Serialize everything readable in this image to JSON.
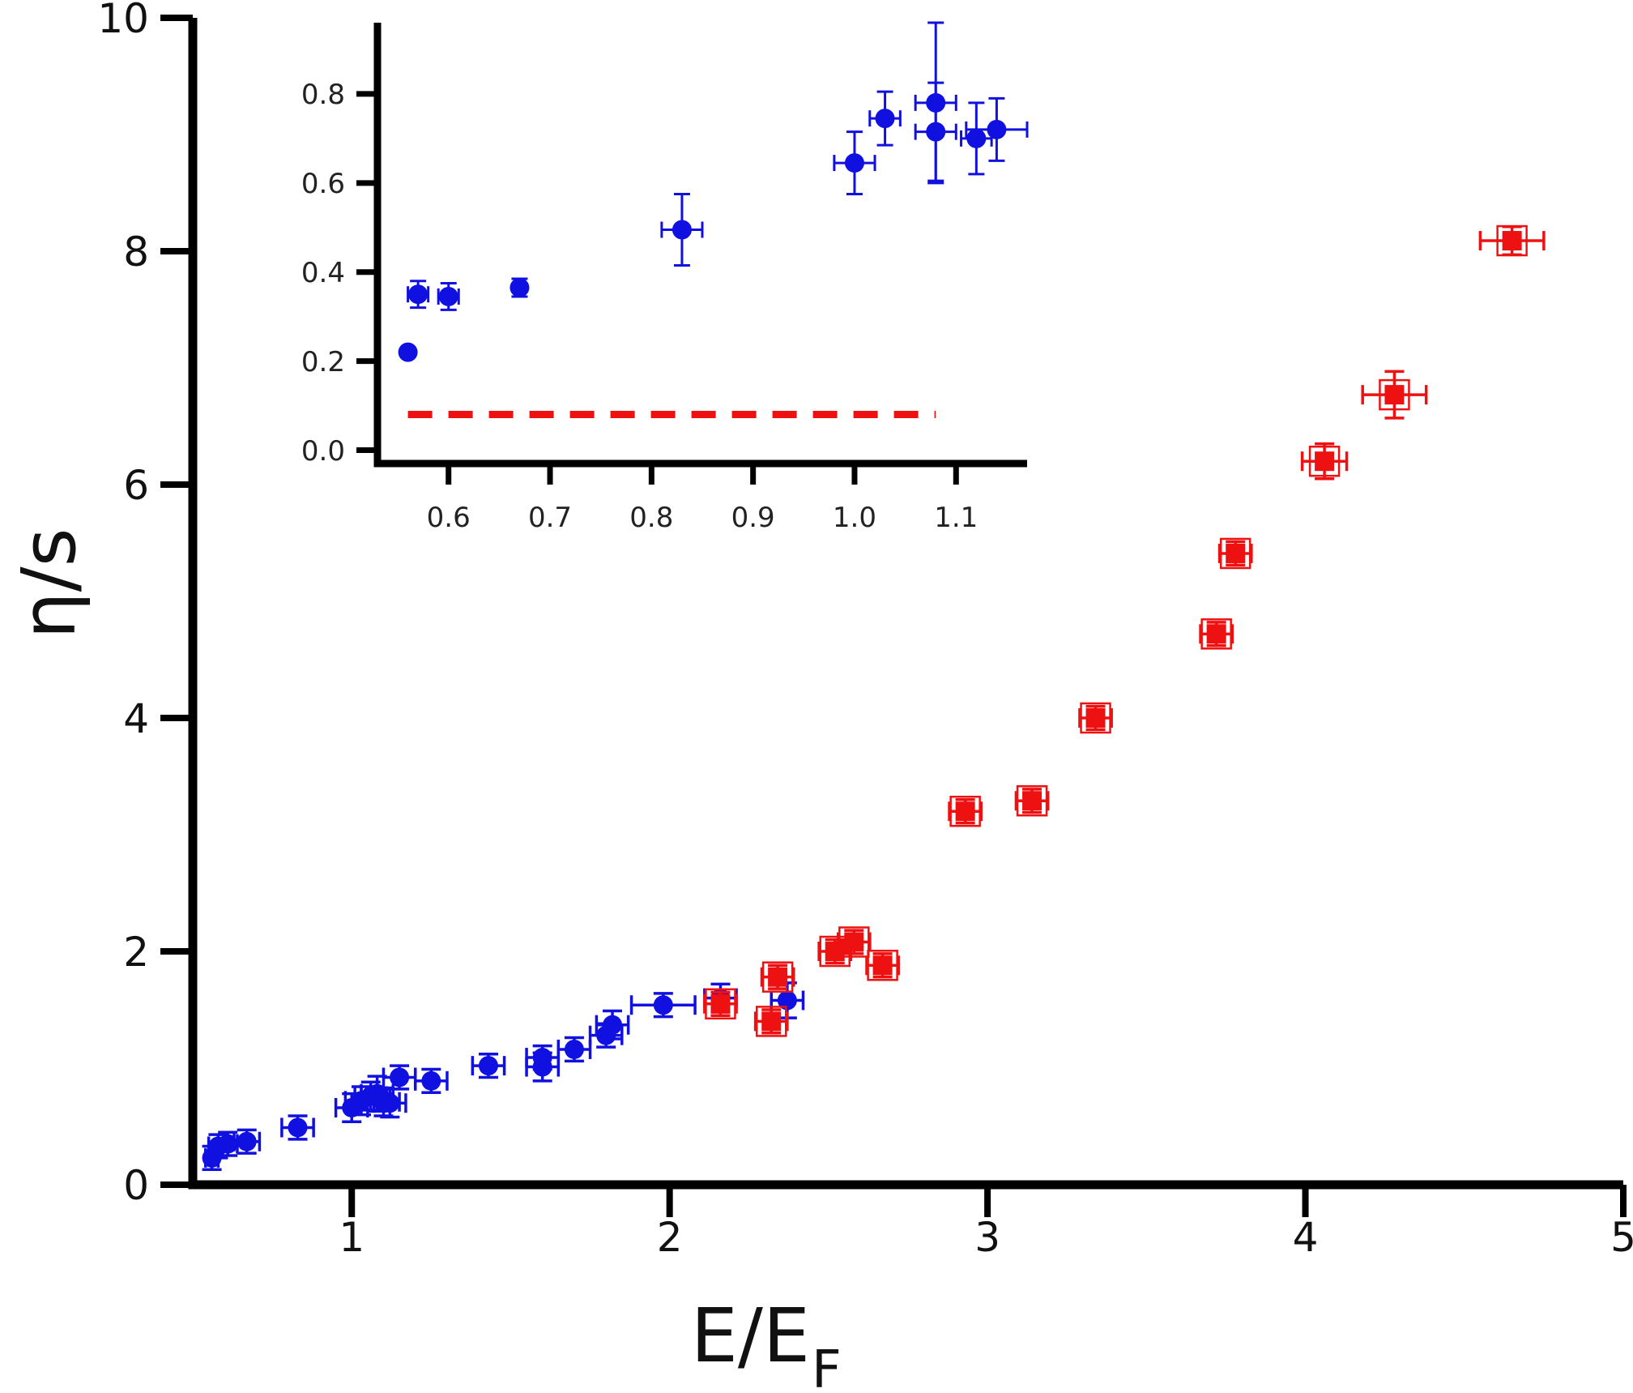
{
  "chart_data": [
    {
      "type": "scatter",
      "xlabel": "E/E",
      "xlabel_subscript": "F",
      "ylabel": "η/s",
      "xlim": [
        0.5,
        5
      ],
      "ylim": [
        0,
        10
      ],
      "xticks": [
        1,
        2,
        3,
        4,
        5
      ],
      "yticks": [
        0,
        2,
        4,
        6,
        8,
        10
      ],
      "grid": false,
      "series": [
        {
          "color": "#1010e0",
          "marker": "circle",
          "points": [
            {
              "x": 0.56,
              "y": 0.23,
              "xerr": 0.02,
              "yerr": 0.1
            },
            {
              "x": 0.58,
              "y": 0.33,
              "xerr": 0.03,
              "yerr": 0.1
            },
            {
              "x": 0.61,
              "y": 0.35,
              "xerr": 0.03,
              "yerr": 0.1
            },
            {
              "x": 0.67,
              "y": 0.37,
              "xerr": 0.04,
              "yerr": 0.1
            },
            {
              "x": 0.83,
              "y": 0.49,
              "xerr": 0.05,
              "yerr": 0.1
            },
            {
              "x": 1.0,
              "y": 0.66,
              "xerr": 0.05,
              "yerr": 0.12
            },
            {
              "x": 1.03,
              "y": 0.72,
              "xerr": 0.05,
              "yerr": 0.12
            },
            {
              "x": 1.06,
              "y": 0.76,
              "xerr": 0.05,
              "yerr": 0.12
            },
            {
              "x": 1.08,
              "y": 0.78,
              "xerr": 0.05,
              "yerr": 0.15
            },
            {
              "x": 1.1,
              "y": 0.71,
              "xerr": 0.05,
              "yerr": 0.12
            },
            {
              "x": 1.12,
              "y": 0.7,
              "xerr": 0.05,
              "yerr": 0.12
            },
            {
              "x": 1.15,
              "y": 0.92,
              "xerr": 0.05,
              "yerr": 0.1
            },
            {
              "x": 1.25,
              "y": 0.89,
              "xerr": 0.05,
              "yerr": 0.1
            },
            {
              "x": 1.43,
              "y": 1.02,
              "xerr": 0.05,
              "yerr": 0.1
            },
            {
              "x": 1.6,
              "y": 1.01,
              "xerr": 0.05,
              "yerr": 0.12
            },
            {
              "x": 1.6,
              "y": 1.09,
              "xerr": 0.05,
              "yerr": 0.1
            },
            {
              "x": 1.7,
              "y": 1.16,
              "xerr": 0.05,
              "yerr": 0.1
            },
            {
              "x": 1.8,
              "y": 1.28,
              "xerr": 0.05,
              "yerr": 0.1
            },
            {
              "x": 1.82,
              "y": 1.37,
              "xerr": 0.05,
              "yerr": 0.12
            },
            {
              "x": 1.98,
              "y": 1.54,
              "xerr": 0.1,
              "yerr": 0.1
            },
            {
              "x": 2.16,
              "y": 1.6,
              "xerr": 0.05,
              "yerr": 0.12
            },
            {
              "x": 2.37,
              "y": 1.58,
              "xerr": 0.05,
              "yerr": 0.15
            }
          ]
        },
        {
          "color": "#ee1111",
          "marker": "square",
          "points": [
            {
              "x": 2.16,
              "y": 1.55,
              "xerr": 0.05,
              "yerr": 0.1
            },
            {
              "x": 2.32,
              "y": 1.4,
              "xerr": 0.05,
              "yerr": 0.1
            },
            {
              "x": 2.34,
              "y": 1.78,
              "xerr": 0.05,
              "yerr": 0.1
            },
            {
              "x": 2.52,
              "y": 2.0,
              "xerr": 0.05,
              "yerr": 0.1
            },
            {
              "x": 2.58,
              "y": 2.08,
              "xerr": 0.05,
              "yerr": 0.1
            },
            {
              "x": 2.67,
              "y": 1.88,
              "xerr": 0.05,
              "yerr": 0.1
            },
            {
              "x": 2.93,
              "y": 3.2,
              "xerr": 0.05,
              "yerr": 0.1
            },
            {
              "x": 3.14,
              "y": 3.29,
              "xerr": 0.05,
              "yerr": 0.1
            },
            {
              "x": 3.34,
              "y": 4.0,
              "xerr": 0.05,
              "yerr": 0.1
            },
            {
              "x": 3.72,
              "y": 4.72,
              "xerr": 0.05,
              "yerr": 0.1
            },
            {
              "x": 3.78,
              "y": 5.41,
              "xerr": 0.05,
              "yerr": 0.1
            },
            {
              "x": 4.06,
              "y": 6.2,
              "xerr": 0.07,
              "yerr": 0.15
            },
            {
              "x": 4.28,
              "y": 6.77,
              "xerr": 0.1,
              "yerr": 0.2
            },
            {
              "x": 4.65,
              "y": 8.09,
              "xerr": 0.1,
              "yerr": 0.12
            }
          ]
        }
      ]
    },
    {
      "type": "scatter",
      "xlim": [
        0.53,
        1.17
      ],
      "ylim": [
        -0.03,
        0.96
      ],
      "xticks": [
        0.6,
        0.7,
        0.8,
        0.9,
        1.0,
        1.1
      ],
      "xtick_labels": [
        "0.6",
        "0.7",
        "0.8",
        "0.9",
        "1.0",
        "1.1"
      ],
      "yticks": [
        0.0,
        0.2,
        0.4,
        0.6,
        0.8
      ],
      "ytick_labels": [
        "0.0",
        "0.2",
        "0.4",
        "0.6",
        "0.8"
      ],
      "grid": false,
      "reference_line": {
        "y": 0.08,
        "x": [
          0.56,
          1.08
        ],
        "style": "dashed",
        "color": "#ee1111"
      },
      "series": [
        {
          "color": "#1010e0",
          "marker": "circle",
          "points": [
            {
              "x": 0.56,
              "y": 0.22,
              "xerr": 0.0,
              "yerr": 0.0
            },
            {
              "x": 0.57,
              "y": 0.35,
              "xerr": 0.01,
              "yerr": 0.03
            },
            {
              "x": 0.6,
              "y": 0.345,
              "xerr": 0.01,
              "yerr": 0.03
            },
            {
              "x": 0.67,
              "y": 0.365,
              "xerr": 0.0,
              "yerr": 0.02
            },
            {
              "x": 0.83,
              "y": 0.495,
              "xerr": 0.02,
              "yerr": 0.08
            },
            {
              "x": 1.0,
              "y": 0.645,
              "xerr": 0.02,
              "yerr": 0.07
            },
            {
              "x": 1.03,
              "y": 0.745,
              "xerr": 0.015,
              "yerr": 0.06
            },
            {
              "x": 1.08,
              "y": 0.78,
              "xerr": 0.02,
              "yerr": 0.18
            },
            {
              "x": 1.08,
              "y": 0.715,
              "xerr": 0.02,
              "yerr": 0.11
            },
            {
              "x": 1.12,
              "y": 0.7,
              "xerr": 0.015,
              "yerr": 0.08
            },
            {
              "x": 1.14,
              "y": 0.72,
              "xerr": 0.03,
              "yerr": 0.07
            }
          ]
        }
      ]
    }
  ]
}
